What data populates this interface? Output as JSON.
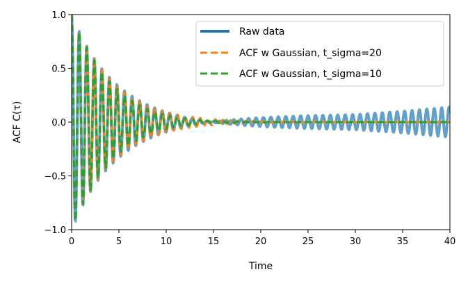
{
  "chart_data": {
    "type": "line",
    "xlabel": "Time",
    "ylabel": "ACF C(τ)",
    "xlim": [
      0,
      40
    ],
    "ylim": [
      -1.0,
      1.0
    ],
    "xticks": [
      0,
      5,
      10,
      15,
      20,
      25,
      30,
      35,
      40
    ],
    "xtick_labels": [
      "0",
      "5",
      "10",
      "15",
      "20",
      "25",
      "30",
      "35",
      "40"
    ],
    "yticks": [
      -1.0,
      -0.5,
      0.0,
      0.5,
      1.0
    ],
    "ytick_labels": [
      "−1.0",
      "−0.5",
      "0.0",
      "0.5",
      "1.0"
    ],
    "legend_position": "top-right",
    "grid": false,
    "colors": {
      "raw": "#1f77b4",
      "sigma20": "#ff7f0e",
      "sigma10": "#2ca02c"
    },
    "series": [
      {
        "name": "Raw data",
        "style": "solid",
        "color": "#1f77b4",
        "model": "acf_raw",
        "period": 0.8,
        "decay_time": 4.5,
        "noise_amplitude_growth": [
          [
            0,
            0.0
          ],
          [
            15,
            0.04
          ],
          [
            25,
            0.06
          ],
          [
            30,
            0.07
          ],
          [
            35,
            0.1
          ],
          [
            40,
            0.14
          ]
        ]
      },
      {
        "name": "ACF w Gaussian, t_sigma=20",
        "style": "dashed",
        "color": "#ff7f0e",
        "model": "acf_gaussian",
        "period": 0.8,
        "decay_time": 4.5,
        "t_sigma": 20
      },
      {
        "name": "ACF w Gaussian, t_sigma=10",
        "style": "dashed",
        "color": "#2ca02c",
        "model": "acf_gaussian",
        "period": 0.8,
        "decay_time": 4.5,
        "t_sigma": 10
      }
    ]
  }
}
